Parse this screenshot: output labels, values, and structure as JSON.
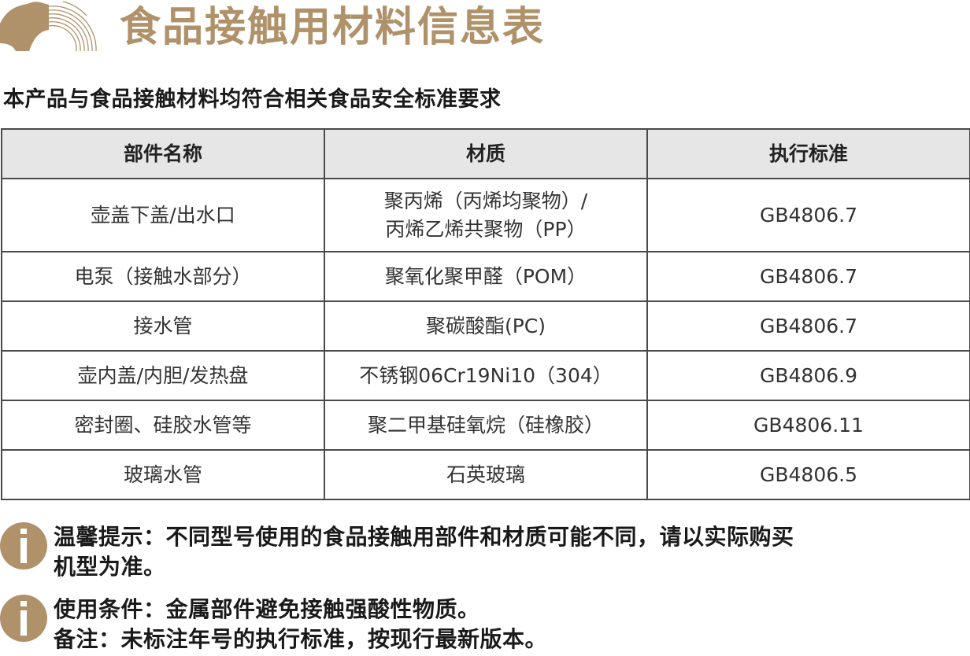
{
  "header": {
    "title": "食品接触用材料信息表",
    "subtitle": "本产品与食品接触材料均符合相关食品安全标准要求",
    "brand_color": "#b0926a"
  },
  "table": {
    "columns": [
      "部件名称",
      "材质",
      "执行标准"
    ],
    "rows": [
      {
        "part": "壶盖下盖/出水口",
        "material_line1": "聚丙烯（丙烯均聚物）/",
        "material_line2": "丙烯乙烯共聚物（PP）",
        "standard": "GB4806.7"
      },
      {
        "part": "电泵（接触水部分）",
        "material_line1": "聚氧化聚甲醛（POM）",
        "material_line2": "",
        "standard": "GB4806.7"
      },
      {
        "part": "接水管",
        "material_line1": "聚碳酸酯(PC)",
        "material_line2": "",
        "standard": "GB4806.7"
      },
      {
        "part": "壶内盖/内胆/发热盘",
        "material_line1": "不锈钢06Cr19Ni10（304）",
        "material_line2": "",
        "standard": "GB4806.9"
      },
      {
        "part": "密封圈、硅胶水管等",
        "material_line1": "聚二甲基硅氧烷（硅橡胶）",
        "material_line2": "",
        "standard": "GB4806.11"
      },
      {
        "part": "玻璃水管",
        "material_line1": "石英玻璃",
        "material_line2": "",
        "standard": "GB4806.5"
      }
    ]
  },
  "notes": [
    {
      "icon": "info-icon",
      "line1": "温馨提示：不同型号使用的食品接触用部件和材质可能不同，请以实际购买",
      "line2": "机型为准。"
    },
    {
      "icon": "info-icon",
      "line1": "使用条件：金属部件避免接触强酸性物质。",
      "line2": "备注：未标注年号的执行标准，按现行最新版本。"
    }
  ]
}
